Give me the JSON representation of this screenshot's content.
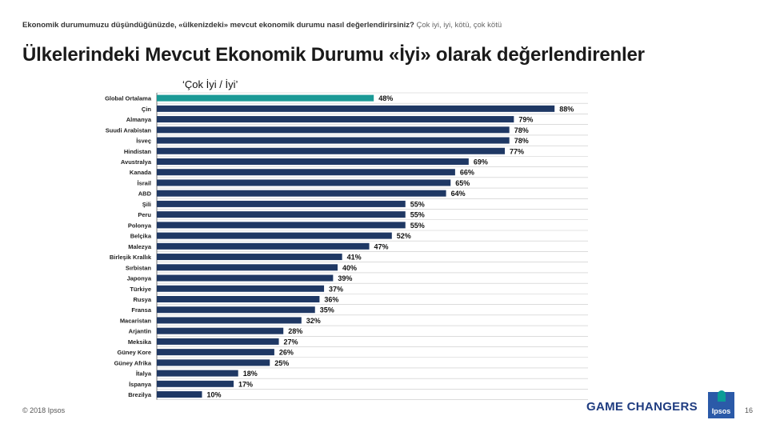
{
  "header": {
    "question_bold": "Ekonomik durumumuzu düşündüğünüzde, «ülkenizdeki» mevcut ekonomik durumu nasıl değerlendirirsiniz?",
    "question_options": "Çok iyi, iyi, kötü, çok kötü",
    "title": "Ülkelerindeki Mevcut Ekonomik Durumu «İyi» olarak değerlendirenler",
    "subtitle": "‘Çok İyi / İyi’"
  },
  "footer": {
    "copyright": "© 2018 Ipsos",
    "tagline": "GAME CHANGERS",
    "logo_text": "Ipsos",
    "page_number": "16"
  },
  "colors": {
    "highlight_bar": "#1b9a96",
    "bar": "#1f3864",
    "logo": "#2b5aa8"
  },
  "chart_data": {
    "type": "bar",
    "orientation": "horizontal",
    "categories": [
      "Global Ortalama",
      "Çin",
      "Almanya",
      "Suudi Arabistan",
      "İsveç",
      "Hindistan",
      "Avustralya",
      "Kanada",
      "İsrail",
      "ABD",
      "Şili",
      "Peru",
      "Polonya",
      "Belçika",
      "Malezya",
      "Birleşik Krallık",
      "Sırbistan",
      "Japonya",
      "Türkiye",
      "Rusya",
      "Fransa",
      "Macaristan",
      "Arjantin",
      "Meksika",
      "Güney Kore",
      "Güney Afrika",
      "İtalya",
      "İspanya",
      "Brezilya"
    ],
    "values": [
      48,
      88,
      79,
      78,
      78,
      77,
      69,
      66,
      65,
      64,
      55,
      55,
      55,
      52,
      47,
      41,
      40,
      39,
      37,
      36,
      35,
      32,
      28,
      27,
      26,
      25,
      18,
      17,
      10
    ],
    "value_labels": [
      "48%",
      "88%",
      "79%",
      "78%",
      "78%",
      "77%",
      "69%",
      "66%",
      "65%",
      "64%",
      "55%",
      "55%",
      "55%",
      "52%",
      "47%",
      "41%",
      "40%",
      "39%",
      "37%",
      "36%",
      "35%",
      "32%",
      "28%",
      "27%",
      "26%",
      "25%",
      "18%",
      "17%",
      "10%"
    ],
    "highlight_index": 0,
    "xlim": [
      0,
      100
    ]
  }
}
